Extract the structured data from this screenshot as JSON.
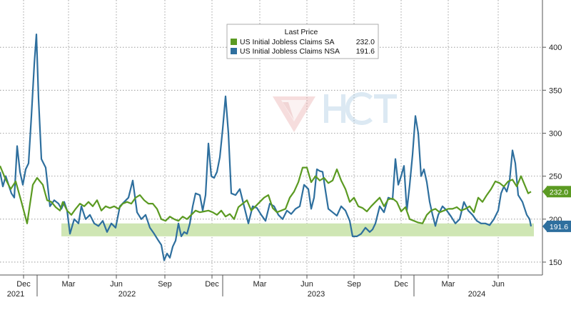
{
  "chart_data": {
    "type": "line",
    "title": "",
    "xlabel": "",
    "ylabel": "",
    "ylim": [
      135,
      455
    ],
    "y_ticks": [
      150,
      200,
      250,
      300,
      350,
      400
    ],
    "x_tick_labels": [
      "Dec",
      "Mar",
      "Jun",
      "Sep",
      "Dec",
      "Mar",
      "Jun",
      "Sep",
      "Dec",
      "Mar",
      "Jun"
    ],
    "year_labels": [
      "2021",
      "2022",
      "2023",
      "2024"
    ],
    "legend": {
      "title": "Last Price",
      "placement": "top-center",
      "entries": [
        {
          "name": "US Initial Jobless Claims SA",
          "value": "232.0"
        },
        {
          "name": "US Initial Jobless Claims NSA",
          "value": "191.6"
        }
      ]
    },
    "band": {
      "from": 180,
      "to": 195
    },
    "colors": {
      "sa": "#5b9a22",
      "nsa": "#2e6f9e",
      "band": "#cfe6b4"
    },
    "series": [
      {
        "name": "US Initial Jobless Claims SA",
        "last_label": "232.0",
        "values": [
          [
            0,
            262
          ],
          [
            7,
            248
          ],
          [
            15,
            235
          ],
          [
            22,
            244
          ],
          [
            30,
            220
          ],
          [
            38,
            195
          ],
          [
            46,
            240
          ],
          [
            52,
            248
          ],
          [
            60,
            240
          ],
          [
            66,
            222
          ],
          [
            72,
            220
          ],
          [
            78,
            214
          ],
          [
            84,
            210
          ],
          [
            88,
            220
          ],
          [
            94,
            210
          ],
          [
            100,
            205
          ],
          [
            106,
            212
          ],
          [
            112,
            218
          ],
          [
            118,
            215
          ],
          [
            124,
            220
          ],
          [
            130,
            215
          ],
          [
            136,
            222
          ],
          [
            142,
            210
          ],
          [
            148,
            215
          ],
          [
            154,
            213
          ],
          [
            160,
            215
          ],
          [
            166,
            212
          ],
          [
            172,
            218
          ],
          [
            178,
            220
          ],
          [
            184,
            218
          ],
          [
            190,
            225
          ],
          [
            196,
            228
          ],
          [
            202,
            222
          ],
          [
            208,
            218
          ],
          [
            214,
            218
          ],
          [
            220,
            212
          ],
          [
            226,
            200
          ],
          [
            232,
            198
          ],
          [
            238,
            203
          ],
          [
            244,
            200
          ],
          [
            250,
            198
          ],
          [
            256,
            203
          ],
          [
            262,
            200
          ],
          [
            268,
            205
          ],
          [
            274,
            210
          ],
          [
            280,
            208
          ],
          [
            286,
            209
          ],
          [
            292,
            210
          ],
          [
            298,
            208
          ],
          [
            304,
            205
          ],
          [
            310,
            210
          ],
          [
            316,
            203
          ],
          [
            322,
            206
          ],
          [
            328,
            200
          ],
          [
            334,
            214
          ],
          [
            340,
            218
          ],
          [
            346,
            222
          ],
          [
            352,
            210
          ],
          [
            358,
            215
          ],
          [
            364,
            220
          ],
          [
            370,
            225
          ],
          [
            376,
            228
          ],
          [
            382,
            213
          ],
          [
            388,
            208
          ],
          [
            394,
            210
          ],
          [
            400,
            212
          ],
          [
            406,
            225
          ],
          [
            412,
            232
          ],
          [
            418,
            243
          ],
          [
            424,
            260
          ],
          [
            430,
            260
          ],
          [
            436,
            243
          ],
          [
            442,
            250
          ],
          [
            448,
            245
          ],
          [
            454,
            248
          ],
          [
            460,
            242
          ],
          [
            466,
            245
          ],
          [
            472,
            258
          ],
          [
            478,
            245
          ],
          [
            484,
            235
          ],
          [
            490,
            220
          ],
          [
            496,
            225
          ],
          [
            502,
            215
          ],
          [
            508,
            213
          ],
          [
            514,
            209
          ],
          [
            520,
            215
          ],
          [
            526,
            220
          ],
          [
            532,
            225
          ],
          [
            538,
            215
          ],
          [
            544,
            223
          ],
          [
            550,
            224
          ],
          [
            556,
            220
          ],
          [
            562,
            209
          ],
          [
            568,
            214
          ],
          [
            574,
            200
          ],
          [
            580,
            198
          ],
          [
            586,
            196
          ],
          [
            592,
            195
          ],
          [
            598,
            205
          ],
          [
            604,
            210
          ],
          [
            610,
            212
          ],
          [
            616,
            208
          ],
          [
            622,
            210
          ],
          [
            628,
            212
          ],
          [
            634,
            212
          ],
          [
            640,
            214
          ],
          [
            646,
            210
          ],
          [
            652,
            212
          ],
          [
            658,
            215
          ],
          [
            664,
            208
          ],
          [
            670,
            225
          ],
          [
            676,
            220
          ],
          [
            682,
            228
          ],
          [
            688,
            235
          ],
          [
            694,
            244
          ],
          [
            700,
            242
          ],
          [
            706,
            238
          ],
          [
            712,
            244
          ],
          [
            718,
            246
          ],
          [
            724,
            238
          ],
          [
            730,
            250
          ],
          [
            736,
            238
          ],
          [
            740,
            230
          ],
          [
            744,
            232
          ]
        ]
      },
      {
        "name": "US Initial Jobless Claims NSA",
        "last_label": "191.6",
        "values": [
          [
            0,
            255
          ],
          [
            4,
            238
          ],
          [
            8,
            250
          ],
          [
            12,
            240
          ],
          [
            16,
            230
          ],
          [
            20,
            225
          ],
          [
            24,
            285
          ],
          [
            28,
            255
          ],
          [
            32,
            240
          ],
          [
            36,
            258
          ],
          [
            40,
            265
          ],
          [
            44,
            320
          ],
          [
            48,
            380
          ],
          [
            51,
            415
          ],
          [
            54,
            340
          ],
          [
            58,
            270
          ],
          [
            64,
            260
          ],
          [
            70,
            215
          ],
          [
            76,
            222
          ],
          [
            82,
            218
          ],
          [
            86,
            212
          ],
          [
            90,
            220
          ],
          [
            94,
            210
          ],
          [
            98,
            183
          ],
          [
            104,
            200
          ],
          [
            110,
            195
          ],
          [
            114,
            215
          ],
          [
            120,
            200
          ],
          [
            126,
            205
          ],
          [
            132,
            195
          ],
          [
            138,
            192
          ],
          [
            144,
            198
          ],
          [
            150,
            185
          ],
          [
            156,
            195
          ],
          [
            162,
            190
          ],
          [
            168,
            215
          ],
          [
            174,
            220
          ],
          [
            180,
            225
          ],
          [
            186,
            245
          ],
          [
            192,
            208
          ],
          [
            198,
            200
          ],
          [
            204,
            205
          ],
          [
            210,
            190
          ],
          [
            216,
            183
          ],
          [
            222,
            175
          ],
          [
            226,
            170
          ],
          [
            230,
            152
          ],
          [
            234,
            160
          ],
          [
            238,
            155
          ],
          [
            242,
            168
          ],
          [
            246,
            175
          ],
          [
            250,
            195
          ],
          [
            254,
            180
          ],
          [
            258,
            185
          ],
          [
            262,
            183
          ],
          [
            266,
            195
          ],
          [
            270,
            215
          ],
          [
            274,
            230
          ],
          [
            280,
            228
          ],
          [
            284,
            210
          ],
          [
            288,
            228
          ],
          [
            292,
            288
          ],
          [
            296,
            250
          ],
          [
            300,
            248
          ],
          [
            304,
            255
          ],
          [
            308,
            272
          ],
          [
            312,
            305
          ],
          [
            316,
            343
          ],
          [
            320,
            300
          ],
          [
            324,
            230
          ],
          [
            330,
            228
          ],
          [
            336,
            235
          ],
          [
            342,
            215
          ],
          [
            348,
            195
          ],
          [
            354,
            215
          ],
          [
            360,
            213
          ],
          [
            366,
            205
          ],
          [
            372,
            198
          ],
          [
            378,
            218
          ],
          [
            384,
            215
          ],
          [
            390,
            205
          ],
          [
            396,
            200
          ],
          [
            402,
            210
          ],
          [
            408,
            206
          ],
          [
            414,
            212
          ],
          [
            420,
            215
          ],
          [
            426,
            240
          ],
          [
            432,
            235
          ],
          [
            436,
            212
          ],
          [
            440,
            225
          ],
          [
            444,
            258
          ],
          [
            448,
            256
          ],
          [
            452,
            255
          ],
          [
            456,
            233
          ],
          [
            460,
            212
          ],
          [
            466,
            208
          ],
          [
            472,
            204
          ],
          [
            478,
            215
          ],
          [
            484,
            210
          ],
          [
            490,
            198
          ],
          [
            494,
            180
          ],
          [
            500,
            180
          ],
          [
            506,
            183
          ],
          [
            512,
            190
          ],
          [
            518,
            185
          ],
          [
            522,
            188
          ],
          [
            526,
            195
          ],
          [
            532,
            215
          ],
          [
            538,
            208
          ],
          [
            544,
            225
          ],
          [
            550,
            223
          ],
          [
            554,
            270
          ],
          [
            558,
            240
          ],
          [
            562,
            250
          ],
          [
            566,
            262
          ],
          [
            570,
            210
          ],
          [
            574,
            240
          ],
          [
            578,
            275
          ],
          [
            582,
            320
          ],
          [
            586,
            300
          ],
          [
            590,
            250
          ],
          [
            594,
            258
          ],
          [
            598,
            243
          ],
          [
            602,
            220
          ],
          [
            606,
            205
          ],
          [
            610,
            192
          ],
          [
            614,
            205
          ],
          [
            620,
            215
          ],
          [
            626,
            210
          ],
          [
            632,
            203
          ],
          [
            638,
            195
          ],
          [
            644,
            200
          ],
          [
            650,
            220
          ],
          [
            656,
            210
          ],
          [
            662,
            205
          ],
          [
            668,
            198
          ],
          [
            674,
            195
          ],
          [
            680,
            195
          ],
          [
            686,
            193
          ],
          [
            692,
            200
          ],
          [
            698,
            210
          ],
          [
            702,
            230
          ],
          [
            706,
            238
          ],
          [
            710,
            232
          ],
          [
            714,
            245
          ],
          [
            718,
            280
          ],
          [
            722,
            265
          ],
          [
            726,
            228
          ],
          [
            732,
            220
          ],
          [
            738,
            205
          ],
          [
            742,
            200
          ],
          [
            744,
            191.6
          ]
        ]
      }
    ]
  }
}
